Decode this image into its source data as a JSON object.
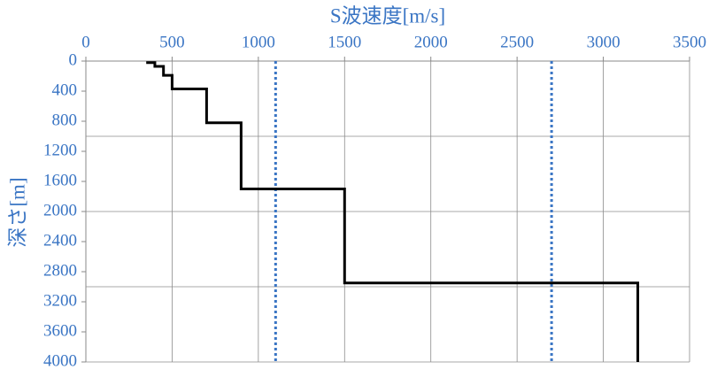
{
  "chart_data": {
    "type": "line",
    "title": "S波速度[m/s]",
    "y_label": "深さ[m]",
    "series": [
      {
        "color": "#000000",
        "x": [
          350,
          400,
          400,
          450,
          450,
          500,
          500,
          700,
          700,
          900,
          900,
          1500,
          1500,
          3200,
          3200
        ],
        "values": [
          20,
          20,
          70,
          70,
          190,
          190,
          370,
          370,
          820,
          820,
          1700,
          1700,
          2950,
          2950,
          4000
        ]
      }
    ],
    "reference_lines": {
      "x": [
        1100,
        2700
      ],
      "color": "#3a75c4"
    },
    "xlim": [
      0,
      3500
    ],
    "xticks": [
      0,
      500,
      1000,
      1500,
      2000,
      2500,
      3000,
      3500
    ],
    "ylim": [
      0,
      4000
    ],
    "yticks": [
      0,
      400,
      800,
      1200,
      1600,
      2000,
      2400,
      2800,
      3200,
      3600,
      4000
    ],
    "y_reversed": true,
    "xgrid": [
      500,
      1000,
      1500,
      2000,
      2500,
      3000,
      3500
    ],
    "ygrid": [
      1000,
      2000,
      3000,
      4000
    ],
    "label_color": "#3a75c4"
  }
}
